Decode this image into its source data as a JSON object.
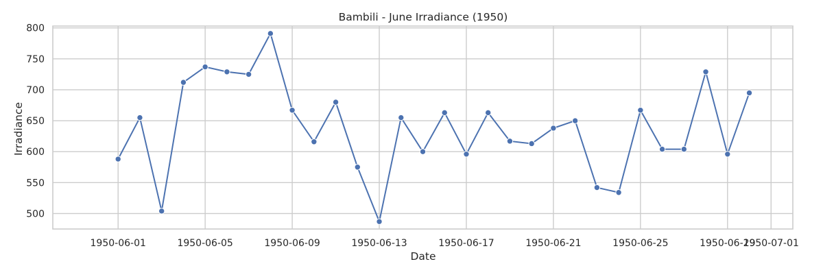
{
  "chart_data": {
    "type": "line",
    "title": "Bambili - June Irradiance (1950)",
    "xlabel": "Date",
    "ylabel": "Irradiance",
    "grid": true,
    "legend": "none",
    "color": "#4c72b0",
    "xlim": [
      "1950-05-29",
      "1950-07-02"
    ],
    "ylim": [
      475,
      803
    ],
    "x_ticks": [
      "1950-06-01",
      "1950-06-05",
      "1950-06-09",
      "1950-06-13",
      "1950-06-17",
      "1950-06-21",
      "1950-06-25",
      "1950-06-29",
      "1950-07-01"
    ],
    "y_ticks": [
      500,
      550,
      600,
      650,
      700,
      750,
      800
    ],
    "x": [
      "1950-06-01",
      "1950-06-02",
      "1950-06-03",
      "1950-06-04",
      "1950-06-05",
      "1950-06-06",
      "1950-06-07",
      "1950-06-08",
      "1950-06-09",
      "1950-06-10",
      "1950-06-11",
      "1950-06-12",
      "1950-06-13",
      "1950-06-14",
      "1950-06-15",
      "1950-06-16",
      "1950-06-17",
      "1950-06-18",
      "1950-06-19",
      "1950-06-20",
      "1950-06-21",
      "1950-06-22",
      "1950-06-23",
      "1950-06-24",
      "1950-06-25",
      "1950-06-26",
      "1950-06-27",
      "1950-06-28",
      "1950-06-29",
      "1950-06-30"
    ],
    "values": [
      588,
      655,
      504,
      712,
      737,
      729,
      725,
      791,
      667,
      616,
      680,
      575,
      487,
      655,
      600,
      663,
      596,
      663,
      617,
      613,
      638,
      650,
      542,
      534,
      667,
      604,
      604,
      729,
      596,
      695
    ]
  }
}
